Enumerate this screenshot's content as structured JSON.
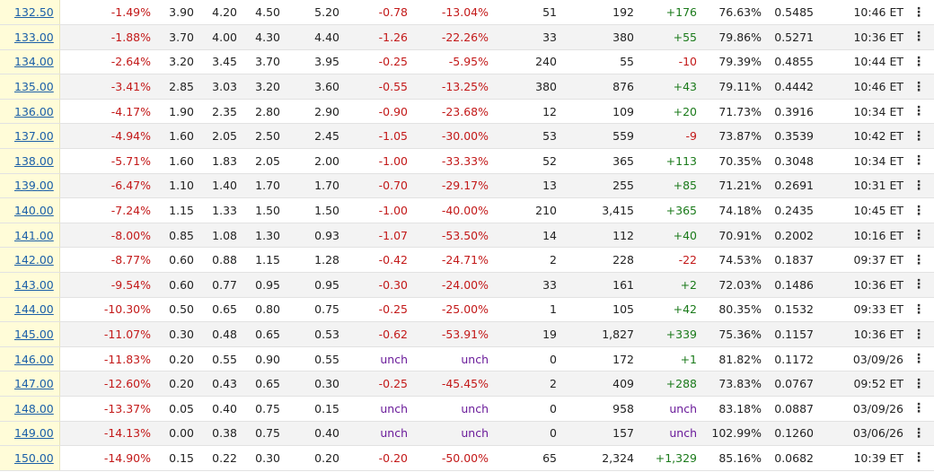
{
  "colors": {
    "negative": "#c31919",
    "positive": "#1a7a1a",
    "unchanged": "#6a1b9a",
    "link": "#1b5fa8",
    "strike_bg": "#fffcd8"
  },
  "row_menu_icon": "vertical-ellipsis-icon",
  "rows": [
    {
      "strike": "132.50",
      "moneyness": "-1.49%",
      "bid": "3.90",
      "mid": "4.20",
      "ask": "4.50",
      "last": "5.20",
      "change": "-0.78",
      "pct_change": "-13.04%",
      "volume": "51",
      "open_int": "192",
      "oi_change": "+176",
      "iv": "76.63%",
      "delta": "0.5485",
      "time": "10:46 ET"
    },
    {
      "strike": "133.00",
      "moneyness": "-1.88%",
      "bid": "3.70",
      "mid": "4.00",
      "ask": "4.30",
      "last": "4.40",
      "change": "-1.26",
      "pct_change": "-22.26%",
      "volume": "33",
      "open_int": "380",
      "oi_change": "+55",
      "iv": "79.86%",
      "delta": "0.5271",
      "time": "10:36 ET"
    },
    {
      "strike": "134.00",
      "moneyness": "-2.64%",
      "bid": "3.20",
      "mid": "3.45",
      "ask": "3.70",
      "last": "3.95",
      "change": "-0.25",
      "pct_change": "-5.95%",
      "volume": "240",
      "open_int": "55",
      "oi_change": "-10",
      "iv": "79.39%",
      "delta": "0.4855",
      "time": "10:44 ET"
    },
    {
      "strike": "135.00",
      "moneyness": "-3.41%",
      "bid": "2.85",
      "mid": "3.03",
      "ask": "3.20",
      "last": "3.60",
      "change": "-0.55",
      "pct_change": "-13.25%",
      "volume": "380",
      "open_int": "876",
      "oi_change": "+43",
      "iv": "79.11%",
      "delta": "0.4442",
      "time": "10:46 ET"
    },
    {
      "strike": "136.00",
      "moneyness": "-4.17%",
      "bid": "1.90",
      "mid": "2.35",
      "ask": "2.80",
      "last": "2.90",
      "change": "-0.90",
      "pct_change": "-23.68%",
      "volume": "12",
      "open_int": "109",
      "oi_change": "+20",
      "iv": "71.73%",
      "delta": "0.3916",
      "time": "10:34 ET"
    },
    {
      "strike": "137.00",
      "moneyness": "-4.94%",
      "bid": "1.60",
      "mid": "2.05",
      "ask": "2.50",
      "last": "2.45",
      "change": "-1.05",
      "pct_change": "-30.00%",
      "volume": "53",
      "open_int": "559",
      "oi_change": "-9",
      "iv": "73.87%",
      "delta": "0.3539",
      "time": "10:42 ET"
    },
    {
      "strike": "138.00",
      "moneyness": "-5.71%",
      "bid": "1.60",
      "mid": "1.83",
      "ask": "2.05",
      "last": "2.00",
      "change": "-1.00",
      "pct_change": "-33.33%",
      "volume": "52",
      "open_int": "365",
      "oi_change": "+113",
      "iv": "70.35%",
      "delta": "0.3048",
      "time": "10:34 ET"
    },
    {
      "strike": "139.00",
      "moneyness": "-6.47%",
      "bid": "1.10",
      "mid": "1.40",
      "ask": "1.70",
      "last": "1.70",
      "change": "-0.70",
      "pct_change": "-29.17%",
      "volume": "13",
      "open_int": "255",
      "oi_change": "+85",
      "iv": "71.21%",
      "delta": "0.2691",
      "time": "10:31 ET"
    },
    {
      "strike": "140.00",
      "moneyness": "-7.24%",
      "bid": "1.15",
      "mid": "1.33",
      "ask": "1.50",
      "last": "1.50",
      "change": "-1.00",
      "pct_change": "-40.00%",
      "volume": "210",
      "open_int": "3,415",
      "oi_change": "+365",
      "iv": "74.18%",
      "delta": "0.2435",
      "time": "10:45 ET"
    },
    {
      "strike": "141.00",
      "moneyness": "-8.00%",
      "bid": "0.85",
      "mid": "1.08",
      "ask": "1.30",
      "last": "0.93",
      "change": "-1.07",
      "pct_change": "-53.50%",
      "volume": "14",
      "open_int": "112",
      "oi_change": "+40",
      "iv": "70.91%",
      "delta": "0.2002",
      "time": "10:16 ET"
    },
    {
      "strike": "142.00",
      "moneyness": "-8.77%",
      "bid": "0.60",
      "mid": "0.88",
      "ask": "1.15",
      "last": "1.28",
      "change": "-0.42",
      "pct_change": "-24.71%",
      "volume": "2",
      "open_int": "228",
      "oi_change": "-22",
      "iv": "74.53%",
      "delta": "0.1837",
      "time": "09:37 ET"
    },
    {
      "strike": "143.00",
      "moneyness": "-9.54%",
      "bid": "0.60",
      "mid": "0.77",
      "ask": "0.95",
      "last": "0.95",
      "change": "-0.30",
      "pct_change": "-24.00%",
      "volume": "33",
      "open_int": "161",
      "oi_change": "+2",
      "iv": "72.03%",
      "delta": "0.1486",
      "time": "10:36 ET"
    },
    {
      "strike": "144.00",
      "moneyness": "-10.30%",
      "bid": "0.50",
      "mid": "0.65",
      "ask": "0.80",
      "last": "0.75",
      "change": "-0.25",
      "pct_change": "-25.00%",
      "volume": "1",
      "open_int": "105",
      "oi_change": "+42",
      "iv": "80.35%",
      "delta": "0.1532",
      "time": "09:33 ET"
    },
    {
      "strike": "145.00",
      "moneyness": "-11.07%",
      "bid": "0.30",
      "mid": "0.48",
      "ask": "0.65",
      "last": "0.53",
      "change": "-0.62",
      "pct_change": "-53.91%",
      "volume": "19",
      "open_int": "1,827",
      "oi_change": "+339",
      "iv": "75.36%",
      "delta": "0.1157",
      "time": "10:36 ET"
    },
    {
      "strike": "146.00",
      "moneyness": "-11.83%",
      "bid": "0.20",
      "mid": "0.55",
      "ask": "0.90",
      "last": "0.55",
      "change": "unch",
      "pct_change": "unch",
      "volume": "0",
      "open_int": "172",
      "oi_change": "+1",
      "iv": "81.82%",
      "delta": "0.1172",
      "time": "03/09/26"
    },
    {
      "strike": "147.00",
      "moneyness": "-12.60%",
      "bid": "0.20",
      "mid": "0.43",
      "ask": "0.65",
      "last": "0.30",
      "change": "-0.25",
      "pct_change": "-45.45%",
      "volume": "2",
      "open_int": "409",
      "oi_change": "+288",
      "iv": "73.83%",
      "delta": "0.0767",
      "time": "09:52 ET"
    },
    {
      "strike": "148.00",
      "moneyness": "-13.37%",
      "bid": "0.05",
      "mid": "0.40",
      "ask": "0.75",
      "last": "0.15",
      "change": "unch",
      "pct_change": "unch",
      "volume": "0",
      "open_int": "958",
      "oi_change": "unch",
      "iv": "83.18%",
      "delta": "0.0887",
      "time": "03/09/26"
    },
    {
      "strike": "149.00",
      "moneyness": "-14.13%",
      "bid": "0.00",
      "mid": "0.38",
      "ask": "0.75",
      "last": "0.40",
      "change": "unch",
      "pct_change": "unch",
      "volume": "0",
      "open_int": "157",
      "oi_change": "unch",
      "iv": "102.99%",
      "delta": "0.1260",
      "time": "03/06/26"
    },
    {
      "strike": "150.00",
      "moneyness": "-14.90%",
      "bid": "0.15",
      "mid": "0.22",
      "ask": "0.30",
      "last": "0.20",
      "change": "-0.20",
      "pct_change": "-50.00%",
      "volume": "65",
      "open_int": "2,324",
      "oi_change": "+1,329",
      "iv": "85.16%",
      "delta": "0.0682",
      "time": "10:39 ET"
    }
  ]
}
